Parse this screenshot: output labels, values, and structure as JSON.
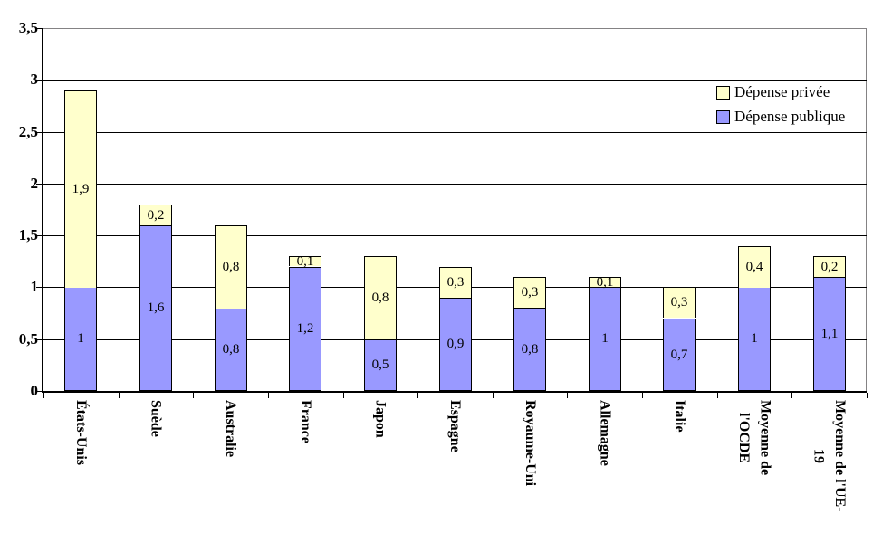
{
  "chart_data": {
    "type": "bar",
    "stacked": true,
    "title": "",
    "xlabel": "",
    "ylabel": "",
    "categories": [
      "États-Unis",
      "Suède",
      "Australie",
      "France",
      "Japon",
      "Espagne",
      "Royaume-Uni",
      "Allemagne",
      "Italie",
      "Moyenne de\nl'OCDE",
      "Moyenne de l'UE-\n19"
    ],
    "series": [
      {
        "name": "Dépense publique",
        "color": "#9999FF",
        "values": [
          1,
          1.6,
          0.8,
          1.2,
          0.5,
          0.9,
          0.8,
          1,
          0.7,
          1,
          1.1
        ],
        "labels": [
          "1",
          "1,6",
          "0,8",
          "1,2",
          "0,5",
          "0,9",
          "0,8",
          "1",
          "0,7",
          "1",
          "1,1"
        ]
      },
      {
        "name": "Dépense privée",
        "color": "#FFFFCC",
        "values": [
          1.9,
          0.2,
          0.8,
          0.1,
          0.8,
          0.3,
          0.3,
          0.1,
          0.3,
          0.4,
          0.2
        ],
        "labels": [
          "1,9",
          "0,2",
          "0,8",
          "0,1",
          "0,8",
          "0,3",
          "0,3",
          "0,1",
          "0,3",
          "0,4",
          "0,2"
        ]
      }
    ],
    "legend": {
      "position": "top-right",
      "entries": [
        {
          "label": "Dépense privée",
          "color": "#FFFFCC"
        },
        {
          "label": "Dépense publique",
          "color": "#9999FF"
        }
      ]
    },
    "y_axis": {
      "range": [
        0,
        3.5
      ],
      "tick_step": 0.5,
      "grid": true,
      "ticks": [
        {
          "value": 0,
          "label": "0"
        },
        {
          "value": 0.5,
          "label": "0,5"
        },
        {
          "value": 1,
          "label": "1"
        },
        {
          "value": 1.5,
          "label": "1,5"
        },
        {
          "value": 2,
          "label": "2"
        },
        {
          "value": 2.5,
          "label": "2,5"
        },
        {
          "value": 3,
          "label": "3"
        },
        {
          "value": 3.5,
          "label": "3,5"
        }
      ]
    },
    "colors": {
      "gridline": "#000000",
      "plot_border": "#848284",
      "axis": "#000000",
      "background": "#FFFFFF"
    }
  }
}
